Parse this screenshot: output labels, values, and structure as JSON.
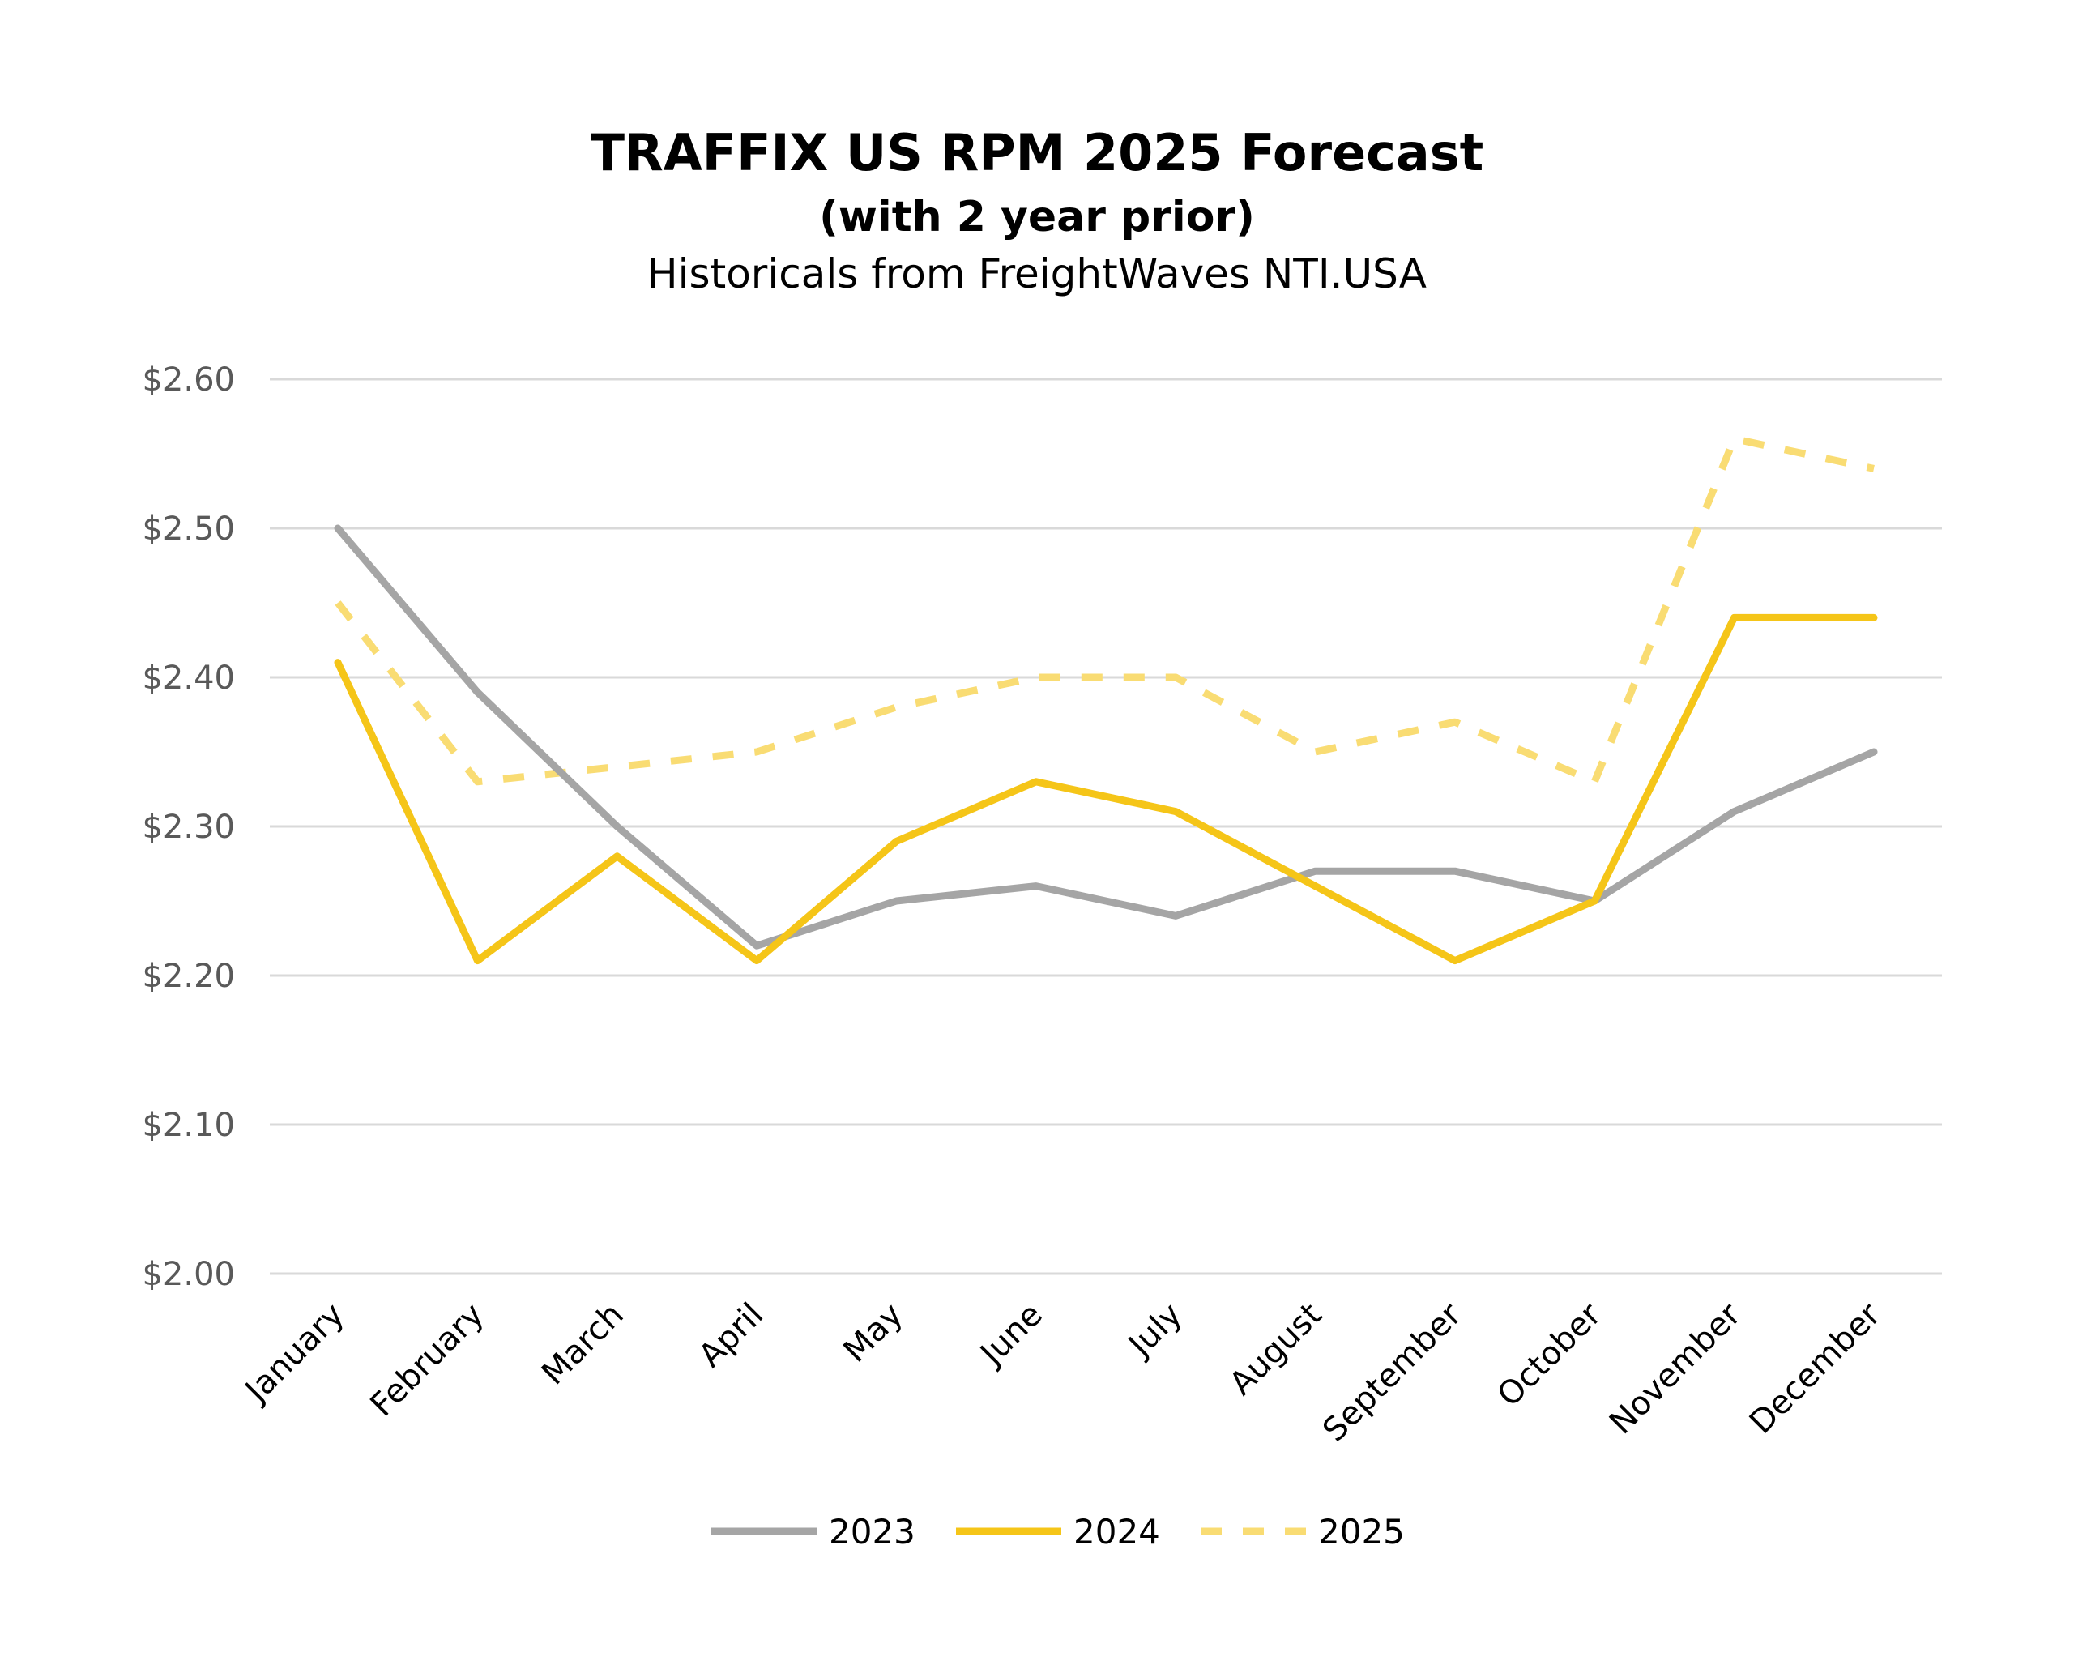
{
  "chart_data": {
    "type": "line",
    "title": "TRAFFIX US RPM 2025 Forecast",
    "subtitle_bold": "(with 2 year prior)",
    "subtitle": "Historicals from FreightWaves  NTI.USA",
    "xlabel": "",
    "ylabel": "",
    "ylim": [
      2.0,
      2.6
    ],
    "yticks": [
      2.0,
      2.1,
      2.2,
      2.3,
      2.4,
      2.5,
      2.6
    ],
    "ytick_labels": [
      "$2.00",
      "$2.10",
      "$2.20",
      "$2.30",
      "$2.40",
      "$2.50",
      "$2.60"
    ],
    "grid": true,
    "legend_position": "bottom",
    "categories": [
      "January",
      "February",
      "March",
      "April",
      "May",
      "June",
      "July",
      "August",
      "September",
      "October",
      "November",
      "December"
    ],
    "series": [
      {
        "name": "2023",
        "color": "#A5A5A5",
        "style": "solid",
        "values": [
          2.5,
          2.39,
          2.3,
          2.22,
          2.25,
          2.26,
          2.24,
          2.27,
          2.27,
          2.25,
          2.31,
          2.35
        ]
      },
      {
        "name": "2024",
        "color": "#F5C518",
        "style": "solid",
        "values": [
          2.41,
          2.21,
          2.28,
          2.21,
          2.29,
          2.33,
          2.31,
          2.26,
          2.21,
          2.25,
          2.44,
          2.44
        ]
      },
      {
        "name": "2025",
        "color": "#F9DC73",
        "style": "dashed",
        "values": [
          2.45,
          2.33,
          2.34,
          2.35,
          2.38,
          2.4,
          2.4,
          2.35,
          2.37,
          2.33,
          2.56,
          2.54
        ]
      }
    ]
  }
}
